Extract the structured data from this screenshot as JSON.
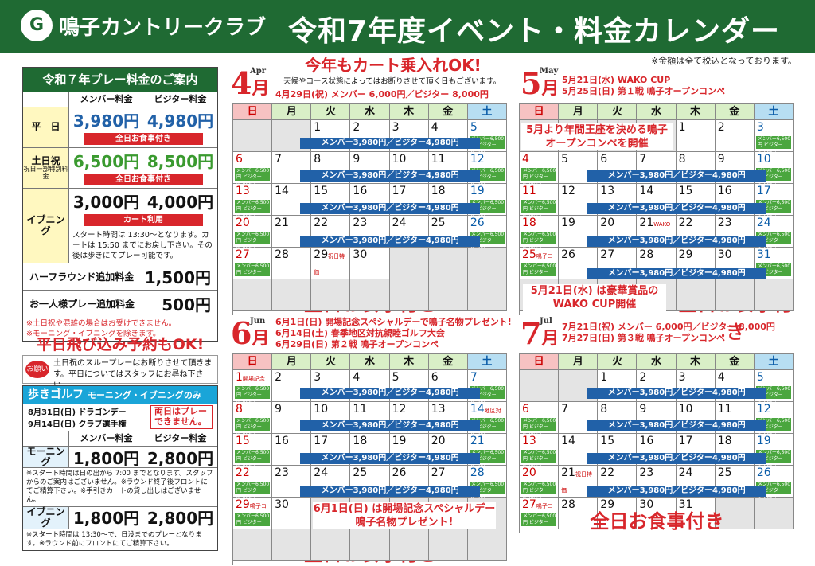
{
  "header": {
    "logo_mark": "G",
    "logo_text": "鳴子カントリークラブ",
    "title": "令和7年度イベント・料金カレンダー"
  },
  "tax_note": "※金額は全て税込となっております。",
  "prices": {
    "heading": "令和７年プレー料金のご案内",
    "col_member": "メンバー料金",
    "col_visitor": "ビジター料金",
    "weekday_label": "平　日",
    "weekday_member": "3,980円",
    "weekday_visitor": "4,980円",
    "weekday_note": "全日お食事付き",
    "holiday_label": "土日祝",
    "holiday_sub": "祝日一部特別料金",
    "holiday_member": "6,500円",
    "holiday_visitor": "8,500円",
    "holiday_note": "全日お食事付き",
    "evening_label": "イブニング",
    "evening_member": "3,000円",
    "evening_visitor": "4,000円",
    "evening_note": "カート利用",
    "evening_text": "スタート時間は 13:30～となります。カートは 15:50 までにお戻し下さい。その後は歩きにてプレー可能です。",
    "half_label": "ハーフラウンド追加料金",
    "half_price": "1,500円",
    "solo_label": "お一人様プレー追加料金",
    "solo_price": "500円",
    "solo_note1": "※土日祝や混雑の場合はお受けできません。",
    "solo_note2": "※モーニング・イブニングを除きます。"
  },
  "drop_in": {
    "banner": "平日飛び込み予約もOK!",
    "badge": "お願い",
    "text": "土日祝のスループレーはお断りさせて頂きます。平日についてはスタッフにお尋ね下さい。"
  },
  "walk": {
    "title": "歩きゴルフ",
    "title_sub": "モーニング・イブニングのみ",
    "date1": "8月31日(日) ドラゴンデー",
    "date2": "9月14日(日) クラブ選手権",
    "warn": "両日はプレーできません。",
    "col_member": "メンバー料金",
    "col_visitor": "ビジター料金",
    "morning_label": "モーニング",
    "morning_member": "1,800円",
    "morning_visitor": "2,800円",
    "morning_text": "※スタート時間は日の出から 7:00 までとなります。スタッフからのご案内はございません。※ラウンド終了後フロントにてご精算下さい。※手引きカートの貸し出しはございません。",
    "evening_label": "イブニング",
    "evening_member": "1,800円",
    "evening_visitor": "2,800円",
    "evening_text": "※スタート時間は 13:30～で、日没までのプレーとなります。※ラウンド前にフロントにてご精算下さい。"
  },
  "weekdays": [
    "日",
    "月",
    "火",
    "水",
    "木",
    "金",
    "土"
  ],
  "price_bar": "メンバー3,980円／ビジター4,980円",
  "price_bar_holiday": "メンバー6,500円／ビジター8,500円",
  "mini_price": "メンバー6,500円 ビジター8,500円",
  "meal": "全日お食事付き",
  "april": {
    "num": "4",
    "kanji": "月",
    "en": "Apr",
    "cart": "今年もカート乗入れOK!",
    "cart_note": "天候やコース状態によってはお断りさせて頂く日もございます。",
    "event": "4月29日(祝) メンバー 6,000円／ビジター 8,000円",
    "holiday_tag": "祝日特価"
  },
  "may": {
    "num": "5",
    "kanji": "月",
    "en": "May",
    "e1": "5月21日(水) WAKO CUP",
    "e2": "5月25日(日) 第１戦 鳴子オープンコンペ",
    "overlay": "5月より年間王座を決める鳴子オープンコンペを開催",
    "wako_tag": "WAKO",
    "compe_tag": "鳴子コンペ",
    "wako_note": "5月21日(水) は豪華賞品のWAKO CUP開催"
  },
  "june": {
    "num": "6",
    "kanji": "月",
    "en": "Jun",
    "e1": "6月1日(日) 開場記念スペシャルデーで鳴子名物プレゼント!",
    "e2": "6月14日(土) 春季地区対抗親睦ゴルフ大会",
    "e3": "6月29日(日) 第２戦 鳴子オープンコンペ",
    "tag1": "開場記念",
    "tag14": "地区対抗",
    "tag29": "鳴子コンペ",
    "overlay": "6月1日(日) は開場記念スペシャルデー鳴子名物プレゼント!"
  },
  "july": {
    "num": "7",
    "kanji": "月",
    "en": "Jul",
    "e1": "7月21日(祝) メンバー 6,000円／ビジター 8,000円",
    "e2": "7月27日(日) 第３戦 鳴子オープンコンペ",
    "tag27": "鳴子コンペ",
    "holiday_tag": "祝日特価"
  }
}
